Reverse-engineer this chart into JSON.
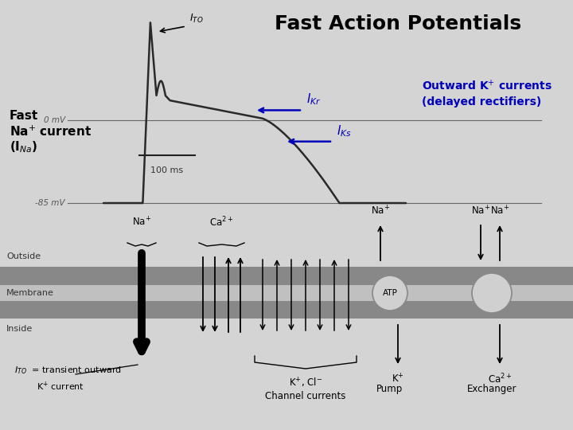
{
  "title": "Fast Action Potentials",
  "title_color": "#000000",
  "title_fontsize": 18,
  "bg_color": "#d8d8d8",
  "label_color_blue": "#0000bb",
  "label_color_black": "#111111",
  "gray_trace": "#444444",
  "zero_mv": "0 mV",
  "minus85_mv": "-85 mV",
  "hundred_ms": "100 ms",
  "mem_outside": "Outside",
  "mem_membrane": "Membrane",
  "mem_inside": "Inside",
  "channel_label": "Channel currents",
  "pump_label": "Pump",
  "exchanger_label": "Exchanger",
  "atp_label": "ATP",
  "membrane_gray_light": "#c8c8c8",
  "membrane_gray_dark": "#888888",
  "membrane_gray_mid": "#b0b0b0"
}
